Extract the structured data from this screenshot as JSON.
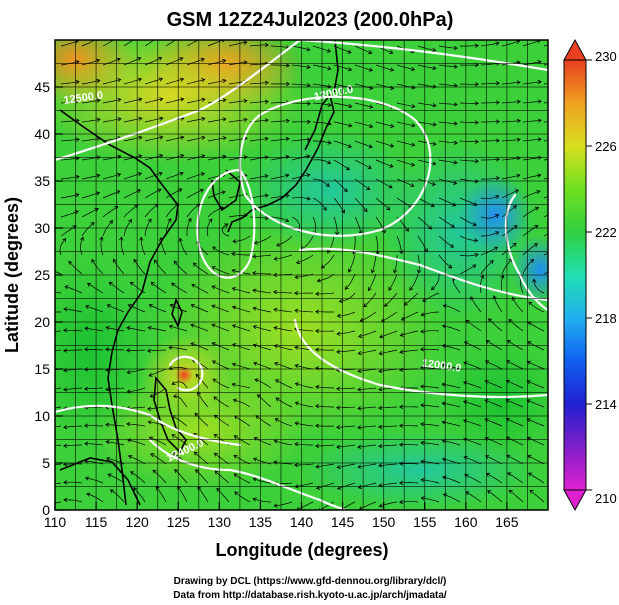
{
  "chart_data": {
    "type": "heatmap",
    "title": "GSM 12Z24Jul2023 (200.0hPa)",
    "xlabel": "Longitude (degrees)",
    "ylabel": "Latitude  (degrees)",
    "xlim": [
      110,
      170
    ],
    "ylim": [
      0,
      50
    ],
    "x_ticks": [
      "110",
      "115",
      "120",
      "125",
      "130",
      "135",
      "140",
      "145",
      "150",
      "155",
      "160",
      "165"
    ],
    "y_ticks": [
      "0",
      "5",
      "10",
      "15",
      "20",
      "25",
      "30",
      "35",
      "40",
      "45"
    ],
    "grid": true,
    "colorbar": {
      "min": 210,
      "max": 230,
      "ticks": [
        "210",
        "214",
        "218",
        "222",
        "226",
        "230"
      ],
      "colors": [
        "#e020d0",
        "#6020c0",
        "#1030e0",
        "#20a0f0",
        "#20e0c0",
        "#30d040",
        "#80e020",
        "#e8e020",
        "#f0a020",
        "#e84020"
      ]
    },
    "contour_labels": [
      {
        "text": "12500.0",
        "lon": 113.5,
        "lat": 43.5,
        "angle": -8
      },
      {
        "text": "12000.0",
        "lon": 144,
        "lat": 44,
        "angle": -12
      },
      {
        "text": "12000.0",
        "lon": 157,
        "lat": 15,
        "angle": 8
      },
      {
        "text": "12400.0",
        "lon": 126,
        "lat": 6,
        "angle": -25
      }
    ]
  },
  "credits": {
    "line1": "Drawing by DCL (https://www.gfd-dennou.org/library/dcl/)",
    "line2": "Data from http://database.rish.kyoto-u.ac.jp/arch/jmadata/"
  }
}
